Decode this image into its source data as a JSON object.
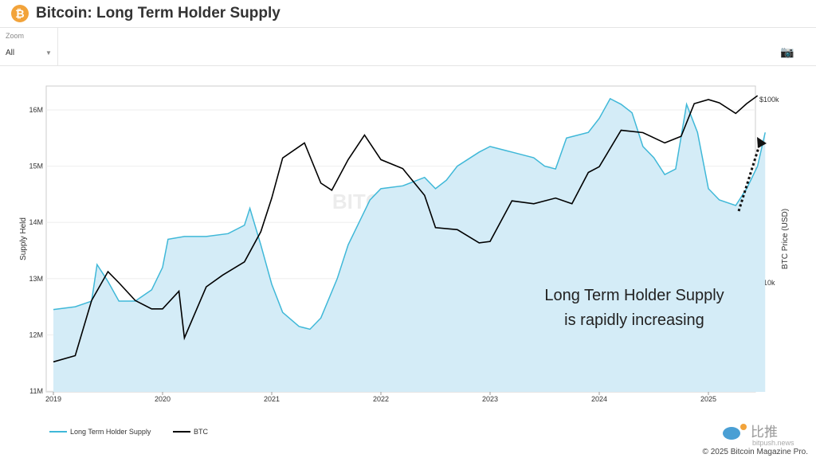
{
  "header": {
    "title": "Bitcoin: Long Term Holder Supply",
    "coin_icon": "bitcoin-icon"
  },
  "toolbar": {
    "zoom_label": "Zoom",
    "zoom_value": "All",
    "camera_icon": "camera-icon"
  },
  "footer": {
    "copyright": "© 2025 Bitcoin Magazine Pro.",
    "badge_cn": "比推",
    "badge_site": "bitpush.news"
  },
  "watermark": "BITCOIN MAGAZINE PRO",
  "chart_data": {
    "type": "line",
    "ylabel": "Supply Held",
    "y2label": "BTC Price (USD)",
    "ylim": [
      11,
      16.5
    ],
    "yticks": [
      "11M",
      "12M",
      "13M",
      "14M",
      "15M",
      "16M"
    ],
    "y2scale": "log",
    "y2ticks": [
      "$10k",
      "$100k"
    ],
    "xticks": [
      "2019",
      "2020",
      "2021",
      "2022",
      "2023",
      "2024",
      "2025"
    ],
    "annotation": [
      "Long Term Holder Supply",
      "is rapidly increasing"
    ],
    "legend_position": "bottom-left",
    "series": [
      {
        "name": "Long Term Holder Supply",
        "color": "#3fb8d8",
        "fill": "#d4ecf7",
        "unit": "M",
        "x": [
          2019.0,
          2019.2,
          2019.35,
          2019.4,
          2019.5,
          2019.6,
          2019.75,
          2019.9,
          2020.0,
          2020.05,
          2020.2,
          2020.4,
          2020.6,
          2020.75,
          2020.8,
          2020.9,
          2021.0,
          2021.1,
          2021.25,
          2021.35,
          2021.45,
          2021.6,
          2021.7,
          2021.8,
          2021.9,
          2022.0,
          2022.2,
          2022.4,
          2022.5,
          2022.6,
          2022.7,
          2022.9,
          2023.0,
          2023.2,
          2023.4,
          2023.5,
          2023.6,
          2023.7,
          2023.8,
          2023.9,
          2024.0,
          2024.1,
          2024.2,
          2024.3,
          2024.4,
          2024.5,
          2024.6,
          2024.7,
          2024.8,
          2024.9,
          2025.0,
          2025.1,
          2025.25,
          2025.35,
          2025.45,
          2025.52
        ],
        "y": [
          12.45,
          12.5,
          12.6,
          13.25,
          12.95,
          12.6,
          12.6,
          12.8,
          13.2,
          13.7,
          13.75,
          13.75,
          13.8,
          13.95,
          14.25,
          13.6,
          12.9,
          12.4,
          12.15,
          12.1,
          12.3,
          13.0,
          13.6,
          14.0,
          14.4,
          14.6,
          14.65,
          14.8,
          14.6,
          14.75,
          15.0,
          15.25,
          15.35,
          15.25,
          15.15,
          15.0,
          14.95,
          15.5,
          15.55,
          15.6,
          15.85,
          16.2,
          16.1,
          15.95,
          15.35,
          15.15,
          14.85,
          14.95,
          16.1,
          15.6,
          14.6,
          14.4,
          14.3,
          14.6,
          15.0,
          15.6
        ]
      },
      {
        "name": "BTC",
        "color": "#000000",
        "unit": "USD",
        "x": [
          2019.0,
          2019.2,
          2019.35,
          2019.5,
          2019.6,
          2019.75,
          2019.9,
          2020.0,
          2020.15,
          2020.2,
          2020.4,
          2020.55,
          2020.75,
          2020.9,
          2021.0,
          2021.1,
          2021.3,
          2021.45,
          2021.55,
          2021.7,
          2021.85,
          2022.0,
          2022.2,
          2022.4,
          2022.5,
          2022.7,
          2022.9,
          2023.0,
          2023.2,
          2023.4,
          2023.6,
          2023.75,
          2023.9,
          2024.0,
          2024.2,
          2024.4,
          2024.6,
          2024.75,
          2024.87,
          2025.0,
          2025.1,
          2025.25,
          2025.35,
          2025.45
        ],
        "y": [
          3700,
          4000,
          8000,
          11500,
          10000,
          8000,
          7200,
          7200,
          9000,
          5000,
          9500,
          11000,
          13000,
          19000,
          29000,
          48000,
          58000,
          35000,
          32000,
          47000,
          64000,
          47000,
          42000,
          30000,
          20000,
          19500,
          16500,
          16800,
          28000,
          27000,
          29000,
          27000,
          40000,
          43000,
          68000,
          66000,
          58000,
          63000,
          95000,
          100000,
          96000,
          84000,
          95000,
          105000
        ]
      }
    ]
  }
}
